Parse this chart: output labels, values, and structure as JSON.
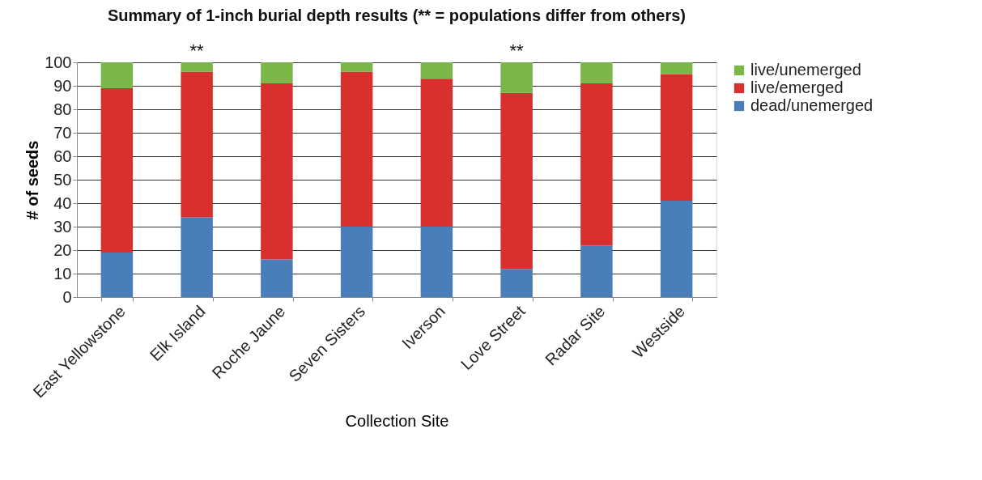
{
  "chart_data": {
    "type": "bar",
    "title": "Summary of 1-inch burial depth results (** = populations differ from others)",
    "xlabel": "Collection Site",
    "ylabel": "# of seeds",
    "categories": [
      "East Yellowstone",
      "Elk Island",
      "Roche Jaune",
      "Seven Sisters",
      "Iverson",
      "Love Street",
      "Radar Site",
      "Westside"
    ],
    "stacked": true,
    "series": [
      {
        "name": "dead/unemerged",
        "color": "#4a7ebb",
        "values": [
          19,
          34,
          16,
          30,
          30,
          12,
          22,
          41
        ]
      },
      {
        "name": "live/emerged",
        "color": "#d8302f",
        "values": [
          70,
          62,
          75,
          66,
          63,
          75,
          69,
          54
        ]
      },
      {
        "name": "live/unemerged",
        "color": "#7ab648",
        "values": [
          11,
          4,
          9,
          4,
          7,
          13,
          9,
          5
        ]
      }
    ],
    "ylim": [
      0,
      100
    ],
    "yticks": [
      0,
      10,
      20,
      30,
      40,
      50,
      60,
      70,
      80,
      90,
      100
    ],
    "grid": "y",
    "legend": "right",
    "annotations": [
      {
        "text": "**",
        "x": "Elk Island",
        "y": 100
      },
      {
        "text": "**",
        "x": "Love Street",
        "y": 100
      }
    ]
  }
}
